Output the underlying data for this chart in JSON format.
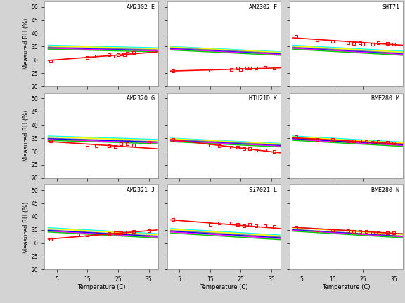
{
  "subplots": [
    {
      "title": "AM2302 E",
      "row": 0,
      "col": 0,
      "measured_x": [
        3,
        15,
        18,
        22,
        24,
        25,
        26,
        27,
        28,
        30
      ],
      "measured_y": [
        29.5,
        31.0,
        31.5,
        32.0,
        31.5,
        32.0,
        32.2,
        32.0,
        32.5,
        32.8
      ],
      "fit": [
        2,
        38,
        29.8,
        33.0
      ],
      "ref_lines": [
        {
          "y0": 35.5,
          "y1": 34.5,
          "color": "#00FFFF",
          "lw": 1.2
        },
        {
          "y0": 35.2,
          "y1": 34.2,
          "color": "#FFFF00",
          "lw": 1.2
        },
        {
          "y0": 34.8,
          "y1": 33.8,
          "color": "#808080",
          "lw": 1.0
        },
        {
          "y0": 34.5,
          "y1": 33.5,
          "color": "#0000FF",
          "lw": 1.0
        },
        {
          "y0": 34.3,
          "y1": 33.3,
          "color": "#FF00FF",
          "lw": 1.0
        },
        {
          "y0": 34.0,
          "y1": 33.0,
          "color": "#00CC00",
          "lw": 1.0
        }
      ]
    },
    {
      "title": "AM2302 F",
      "row": 0,
      "col": 1,
      "measured_x": [
        3,
        15,
        22,
        24,
        25,
        27,
        28,
        30,
        33,
        36
      ],
      "measured_y": [
        25.8,
        26.0,
        26.5,
        26.8,
        26.5,
        26.8,
        27.0,
        26.8,
        27.2,
        27.0
      ],
      "fit": [
        2,
        38,
        25.8,
        27.0
      ],
      "ref_lines": [
        {
          "y0": 35.0,
          "y1": 33.0,
          "color": "#00FFFF",
          "lw": 1.2
        },
        {
          "y0": 34.8,
          "y1": 32.8,
          "color": "#FFFF00",
          "lw": 1.2
        },
        {
          "y0": 34.5,
          "y1": 32.5,
          "color": "#808080",
          "lw": 1.0
        },
        {
          "y0": 34.2,
          "y1": 32.2,
          "color": "#0000FF",
          "lw": 1.0
        },
        {
          "y0": 34.0,
          "y1": 32.0,
          "color": "#FF00FF",
          "lw": 1.0
        },
        {
          "y0": 33.7,
          "y1": 31.7,
          "color": "#00CC00",
          "lw": 1.0
        }
      ]
    },
    {
      "title": "SHT71",
      "row": 0,
      "col": 2,
      "measured_x": [
        3,
        10,
        15,
        20,
        22,
        24,
        25,
        28,
        30,
        33,
        35
      ],
      "measured_y": [
        38.8,
        37.5,
        37.0,
        36.5,
        36.2,
        36.5,
        36.0,
        36.0,
        36.5,
        36.2,
        36.0
      ],
      "fit": [
        2,
        38,
        38.3,
        35.5
      ],
      "ref_lines": [
        {
          "y0": 35.5,
          "y1": 33.2,
          "color": "#00FFFF",
          "lw": 1.2
        },
        {
          "y0": 35.2,
          "y1": 32.9,
          "color": "#FFFF00",
          "lw": 1.2
        },
        {
          "y0": 34.8,
          "y1": 32.5,
          "color": "#808080",
          "lw": 1.0
        },
        {
          "y0": 34.5,
          "y1": 32.2,
          "color": "#0000FF",
          "lw": 1.0
        },
        {
          "y0": 34.3,
          "y1": 32.0,
          "color": "#FF00FF",
          "lw": 1.0
        },
        {
          "y0": 34.0,
          "y1": 31.7,
          "color": "#00CC00",
          "lw": 1.0
        }
      ]
    },
    {
      "title": "AM2320 G",
      "row": 1,
      "col": 0,
      "measured_x": [
        3,
        15,
        18,
        22,
        24,
        25,
        26,
        28,
        30,
        35
      ],
      "measured_y": [
        34.0,
        31.5,
        32.0,
        32.0,
        31.8,
        32.5,
        33.0,
        33.0,
        32.5,
        33.5
      ],
      "fit": [
        2,
        38,
        33.8,
        31.0
      ],
      "ref_lines": [
        {
          "y0": 35.8,
          "y1": 34.5,
          "color": "#00FFFF",
          "lw": 1.2
        },
        {
          "y0": 35.5,
          "y1": 34.2,
          "color": "#FFFF00",
          "lw": 1.2
        },
        {
          "y0": 35.0,
          "y1": 33.7,
          "color": "#808080",
          "lw": 1.0
        },
        {
          "y0": 34.8,
          "y1": 33.5,
          "color": "#0000FF",
          "lw": 1.0
        },
        {
          "y0": 34.5,
          "y1": 33.2,
          "color": "#FF00FF",
          "lw": 1.0
        },
        {
          "y0": 34.2,
          "y1": 32.9,
          "color": "#00CC00",
          "lw": 1.0
        }
      ]
    },
    {
      "title": "HTU21D K",
      "row": 1,
      "col": 1,
      "measured_x": [
        3,
        15,
        18,
        22,
        24,
        26,
        28,
        30,
        33,
        36
      ],
      "measured_y": [
        34.5,
        32.5,
        32.2,
        31.5,
        31.5,
        31.0,
        31.0,
        30.5,
        30.5,
        30.0
      ],
      "fit": [
        2,
        38,
        34.5,
        29.5
      ],
      "ref_lines": [
        {
          "y0": 35.0,
          "y1": 33.0,
          "color": "#00FFFF",
          "lw": 1.2
        },
        {
          "y0": 34.8,
          "y1": 32.8,
          "color": "#FFFF00",
          "lw": 1.2
        },
        {
          "y0": 34.5,
          "y1": 32.5,
          "color": "#808080",
          "lw": 1.0
        },
        {
          "y0": 34.2,
          "y1": 32.2,
          "color": "#0000FF",
          "lw": 1.0
        },
        {
          "y0": 34.0,
          "y1": 32.0,
          "color": "#FF00FF",
          "lw": 1.0
        },
        {
          "y0": 33.7,
          "y1": 31.7,
          "color": "#00CC00",
          "lw": 1.0
        }
      ]
    },
    {
      "title": "BME280 M",
      "row": 1,
      "col": 2,
      "measured_x": [
        3,
        10,
        15,
        20,
        22,
        24,
        26,
        28,
        30,
        33,
        35
      ],
      "measured_y": [
        35.5,
        34.5,
        34.5,
        34.0,
        34.0,
        34.0,
        33.8,
        33.5,
        33.8,
        33.5,
        33.2
      ],
      "fit": [
        2,
        38,
        35.2,
        32.8
      ],
      "ref_lines": [
        {
          "y0": 35.8,
          "y1": 33.5,
          "color": "#00FFFF",
          "lw": 1.2
        },
        {
          "y0": 35.5,
          "y1": 33.2,
          "color": "#FFFF00",
          "lw": 1.2
        },
        {
          "y0": 35.0,
          "y1": 32.7,
          "color": "#808080",
          "lw": 1.0
        },
        {
          "y0": 34.8,
          "y1": 32.5,
          "color": "#0000FF",
          "lw": 1.0
        },
        {
          "y0": 34.5,
          "y1": 32.2,
          "color": "#FF00FF",
          "lw": 1.0
        },
        {
          "y0": 34.2,
          "y1": 31.9,
          "color": "#00CC00",
          "lw": 1.0
        }
      ]
    },
    {
      "title": "AM2321 J",
      "row": 2,
      "col": 0,
      "measured_x": [
        3,
        12,
        15,
        18,
        22,
        24,
        25,
        26,
        28,
        30,
        35
      ],
      "measured_y": [
        31.5,
        33.0,
        33.0,
        33.5,
        33.5,
        34.0,
        34.0,
        34.0,
        34.2,
        34.5,
        34.8
      ],
      "fit": [
        2,
        38,
        31.5,
        35.0
      ],
      "ref_lines": [
        {
          "y0": 35.8,
          "y1": 33.5,
          "color": "#00FFFF",
          "lw": 1.2
        },
        {
          "y0": 35.5,
          "y1": 33.2,
          "color": "#FFFF00",
          "lw": 1.2
        },
        {
          "y0": 35.0,
          "y1": 32.7,
          "color": "#808080",
          "lw": 1.0
        },
        {
          "y0": 34.8,
          "y1": 32.5,
          "color": "#0000FF",
          "lw": 1.0
        },
        {
          "y0": 34.5,
          "y1": 32.2,
          "color": "#FF00FF",
          "lw": 1.0
        },
        {
          "y0": 34.2,
          "y1": 31.9,
          "color": "#00CC00",
          "lw": 1.0
        }
      ]
    },
    {
      "title": "Si7021 L",
      "row": 2,
      "col": 1,
      "measured_x": [
        3,
        15,
        18,
        22,
        24,
        26,
        28,
        30,
        33,
        36
      ],
      "measured_y": [
        38.8,
        37.0,
        37.5,
        37.5,
        37.0,
        36.5,
        37.0,
        36.5,
        36.5,
        36.2
      ],
      "fit": [
        2,
        38,
        38.8,
        35.5
      ],
      "ref_lines": [
        {
          "y0": 35.5,
          "y1": 33.0,
          "color": "#00FFFF",
          "lw": 1.2
        },
        {
          "y0": 35.2,
          "y1": 32.7,
          "color": "#FFFF00",
          "lw": 1.2
        },
        {
          "y0": 34.8,
          "y1": 32.3,
          "color": "#808080",
          "lw": 1.0
        },
        {
          "y0": 34.5,
          "y1": 32.0,
          "color": "#0000FF",
          "lw": 1.0
        },
        {
          "y0": 34.2,
          "y1": 31.7,
          "color": "#FF00FF",
          "lw": 1.0
        },
        {
          "y0": 33.8,
          "y1": 31.3,
          "color": "#00CC00",
          "lw": 1.0
        }
      ]
    },
    {
      "title": "BME280 N",
      "row": 2,
      "col": 2,
      "measured_x": [
        3,
        10,
        15,
        20,
        22,
        24,
        26,
        28,
        30,
        33,
        35
      ],
      "measured_y": [
        36.0,
        35.0,
        35.0,
        34.8,
        34.5,
        34.5,
        34.5,
        34.2,
        34.0,
        34.0,
        34.0
      ],
      "fit": [
        2,
        38,
        36.0,
        33.5
      ],
      "ref_lines": [
        {
          "y0": 36.0,
          "y1": 33.5,
          "color": "#00FFFF",
          "lw": 1.2
        },
        {
          "y0": 35.8,
          "y1": 33.3,
          "color": "#FFFF00",
          "lw": 1.2
        },
        {
          "y0": 35.2,
          "y1": 32.7,
          "color": "#808080",
          "lw": 1.0
        },
        {
          "y0": 35.0,
          "y1": 32.5,
          "color": "#0000FF",
          "lw": 1.0
        },
        {
          "y0": 34.8,
          "y1": 32.3,
          "color": "#FF00FF",
          "lw": 1.0
        },
        {
          "y0": 34.5,
          "y1": 32.0,
          "color": "#00CC00",
          "lw": 1.0
        }
      ]
    }
  ],
  "xlim": [
    1,
    38
  ],
  "ylim": [
    20,
    52
  ],
  "yticks": [
    20,
    25,
    30,
    35,
    40,
    45,
    50
  ],
  "xticks": [
    5,
    15,
    25,
    35
  ],
  "xlabel": "Temperature (C)",
  "ylabel": "Measured RH (%)",
  "fig_facecolor": "#D3D3D3",
  "ax_facecolor": "#FFFFFF"
}
